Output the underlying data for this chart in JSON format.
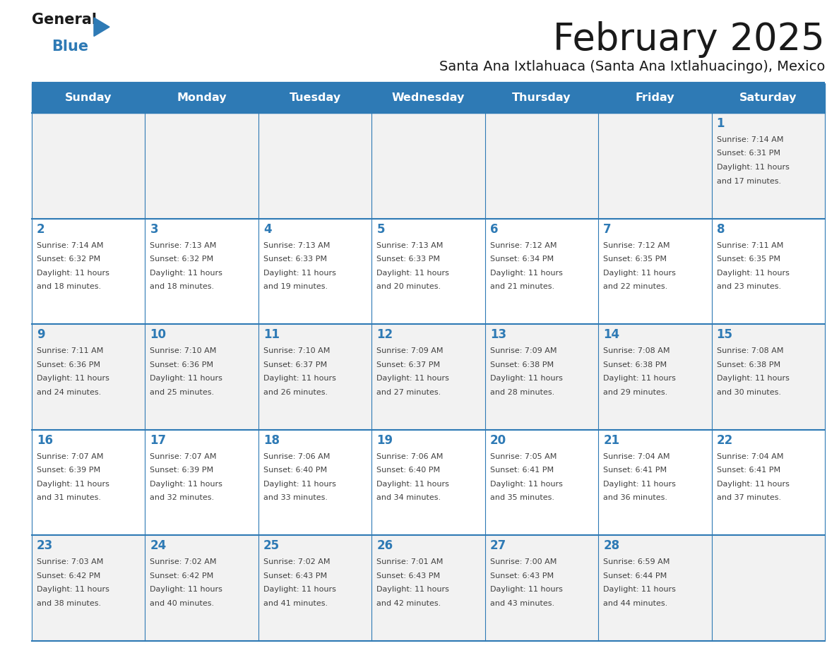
{
  "title": "February 2025",
  "subtitle": "Santa Ana Ixtlahuaca (Santa Ana Ixtlahuacingo), Mexico",
  "days_of_week": [
    "Sunday",
    "Monday",
    "Tuesday",
    "Wednesday",
    "Thursday",
    "Friday",
    "Saturday"
  ],
  "header_bg": "#2E7AB5",
  "header_text": "#FFFFFF",
  "row_bg_odd": "#F2F2F2",
  "row_bg_even": "#FFFFFF",
  "day_num_color": "#2E7AB5",
  "text_color": "#404040",
  "line_color": "#2E7AB5",
  "logo_color1": "#1a1a1a",
  "logo_color2": "#2E7AB5",
  "calendar": [
    [
      null,
      null,
      null,
      null,
      null,
      null,
      {
        "day": 1,
        "sunrise": "7:14 AM",
        "sunset": "6:31 PM",
        "daylight": "11 hours and 17 minutes"
      }
    ],
    [
      {
        "day": 2,
        "sunrise": "7:14 AM",
        "sunset": "6:32 PM",
        "daylight": "11 hours and 18 minutes"
      },
      {
        "day": 3,
        "sunrise": "7:13 AM",
        "sunset": "6:32 PM",
        "daylight": "11 hours and 18 minutes"
      },
      {
        "day": 4,
        "sunrise": "7:13 AM",
        "sunset": "6:33 PM",
        "daylight": "11 hours and 19 minutes"
      },
      {
        "day": 5,
        "sunrise": "7:13 AM",
        "sunset": "6:33 PM",
        "daylight": "11 hours and 20 minutes"
      },
      {
        "day": 6,
        "sunrise": "7:12 AM",
        "sunset": "6:34 PM",
        "daylight": "11 hours and 21 minutes"
      },
      {
        "day": 7,
        "sunrise": "7:12 AM",
        "sunset": "6:35 PM",
        "daylight": "11 hours and 22 minutes"
      },
      {
        "day": 8,
        "sunrise": "7:11 AM",
        "sunset": "6:35 PM",
        "daylight": "11 hours and 23 minutes"
      }
    ],
    [
      {
        "day": 9,
        "sunrise": "7:11 AM",
        "sunset": "6:36 PM",
        "daylight": "11 hours and 24 minutes"
      },
      {
        "day": 10,
        "sunrise": "7:10 AM",
        "sunset": "6:36 PM",
        "daylight": "11 hours and 25 minutes"
      },
      {
        "day": 11,
        "sunrise": "7:10 AM",
        "sunset": "6:37 PM",
        "daylight": "11 hours and 26 minutes"
      },
      {
        "day": 12,
        "sunrise": "7:09 AM",
        "sunset": "6:37 PM",
        "daylight": "11 hours and 27 minutes"
      },
      {
        "day": 13,
        "sunrise": "7:09 AM",
        "sunset": "6:38 PM",
        "daylight": "11 hours and 28 minutes"
      },
      {
        "day": 14,
        "sunrise": "7:08 AM",
        "sunset": "6:38 PM",
        "daylight": "11 hours and 29 minutes"
      },
      {
        "day": 15,
        "sunrise": "7:08 AM",
        "sunset": "6:38 PM",
        "daylight": "11 hours and 30 minutes"
      }
    ],
    [
      {
        "day": 16,
        "sunrise": "7:07 AM",
        "sunset": "6:39 PM",
        "daylight": "11 hours and 31 minutes"
      },
      {
        "day": 17,
        "sunrise": "7:07 AM",
        "sunset": "6:39 PM",
        "daylight": "11 hours and 32 minutes"
      },
      {
        "day": 18,
        "sunrise": "7:06 AM",
        "sunset": "6:40 PM",
        "daylight": "11 hours and 33 minutes"
      },
      {
        "day": 19,
        "sunrise": "7:06 AM",
        "sunset": "6:40 PM",
        "daylight": "11 hours and 34 minutes"
      },
      {
        "day": 20,
        "sunrise": "7:05 AM",
        "sunset": "6:41 PM",
        "daylight": "11 hours and 35 minutes"
      },
      {
        "day": 21,
        "sunrise": "7:04 AM",
        "sunset": "6:41 PM",
        "daylight": "11 hours and 36 minutes"
      },
      {
        "day": 22,
        "sunrise": "7:04 AM",
        "sunset": "6:41 PM",
        "daylight": "11 hours and 37 minutes"
      }
    ],
    [
      {
        "day": 23,
        "sunrise": "7:03 AM",
        "sunset": "6:42 PM",
        "daylight": "11 hours and 38 minutes"
      },
      {
        "day": 24,
        "sunrise": "7:02 AM",
        "sunset": "6:42 PM",
        "daylight": "11 hours and 40 minutes"
      },
      {
        "day": 25,
        "sunrise": "7:02 AM",
        "sunset": "6:43 PM",
        "daylight": "11 hours and 41 minutes"
      },
      {
        "day": 26,
        "sunrise": "7:01 AM",
        "sunset": "6:43 PM",
        "daylight": "11 hours and 42 minutes"
      },
      {
        "day": 27,
        "sunrise": "7:00 AM",
        "sunset": "6:43 PM",
        "daylight": "11 hours and 43 minutes"
      },
      {
        "day": 28,
        "sunrise": "6:59 AM",
        "sunset": "6:44 PM",
        "daylight": "11 hours and 44 minutes"
      },
      null
    ]
  ],
  "figsize": [
    11.88,
    9.18
  ],
  "dpi": 100
}
